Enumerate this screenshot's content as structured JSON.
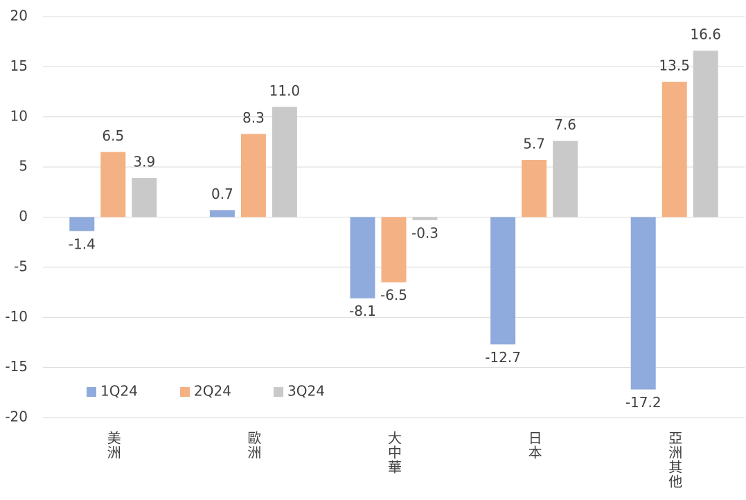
{
  "chart_data": {
    "type": "bar",
    "categories": [
      "美洲",
      "歐洲",
      "大中華",
      "日本",
      "亞洲其他"
    ],
    "series": [
      {
        "name": "1Q24",
        "color": "#8faadc",
        "values": [
          -1.4,
          0.7,
          -8.1,
          -12.7,
          -17.2
        ],
        "value_labels": [
          "-1.4",
          "0.7",
          "-8.1",
          "-12.7",
          "-17.2"
        ]
      },
      {
        "name": "2Q24",
        "color": "#f4b183",
        "values": [
          6.5,
          8.3,
          -6.5,
          5.7,
          13.5
        ],
        "value_labels": [
          "6.5",
          "8.3",
          "-6.5",
          "5.7",
          "13.5"
        ]
      },
      {
        "name": "3Q24",
        "color": "#c9c9c9",
        "values": [
          3.9,
          11.0,
          -0.3,
          7.6,
          16.6
        ],
        "value_labels": [
          "3.9",
          "11.0",
          "-0.3",
          "7.6",
          "16.6"
        ]
      }
    ],
    "ylim": [
      -20,
      20
    ],
    "yticks": [
      -20,
      -15,
      -10,
      -5,
      0,
      5,
      10,
      15,
      20
    ],
    "grid": true,
    "legend": "lower left"
  }
}
